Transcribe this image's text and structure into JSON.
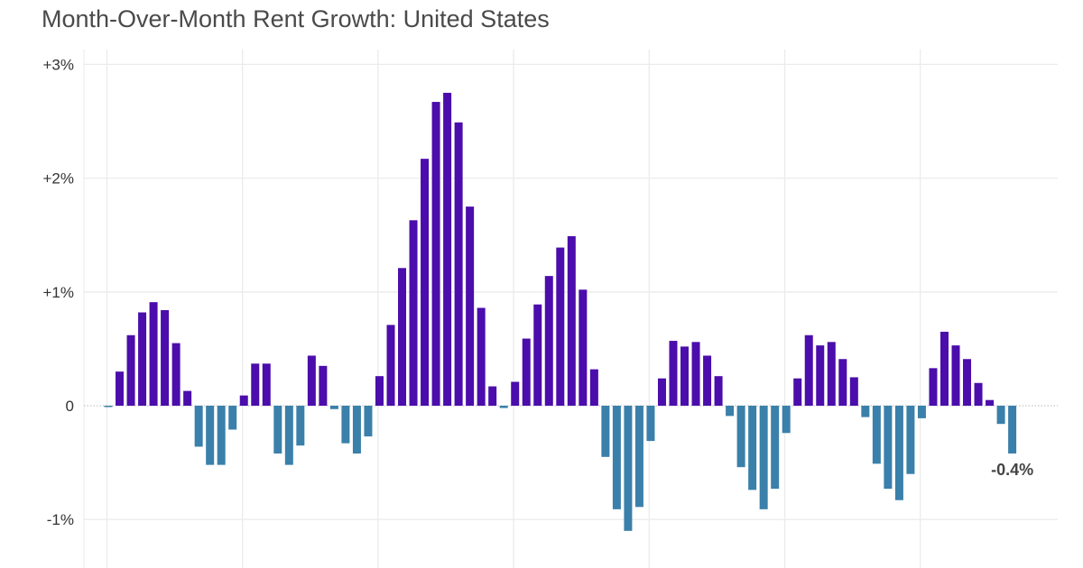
{
  "chart_data": {
    "type": "bar",
    "title": "Month-Over-Month Rent Growth: United States",
    "xlabel": "",
    "ylabel": "",
    "ylim": [
      -1.4,
      3.15
    ],
    "yticks": [
      -1,
      0,
      1,
      2,
      3
    ],
    "ytick_labels": [
      "-1%",
      "0",
      "+1%",
      "+2%",
      "+3%"
    ],
    "grid": true,
    "colors": {
      "positive": "#4b0dab",
      "negative": "#3a80aa",
      "grid": "#ebebeb"
    },
    "values": [
      -0.01,
      0.3,
      0.62,
      0.82,
      0.91,
      0.84,
      0.55,
      0.13,
      -0.36,
      -0.52,
      -0.52,
      -0.21,
      0.09,
      0.37,
      0.37,
      -0.42,
      -0.52,
      -0.35,
      0.44,
      0.35,
      -0.03,
      -0.33,
      -0.42,
      -0.27,
      0.26,
      0.71,
      1.21,
      1.63,
      2.17,
      2.67,
      2.75,
      2.49,
      1.75,
      0.86,
      0.17,
      -0.02,
      0.21,
      0.59,
      0.89,
      1.14,
      1.39,
      1.49,
      1.02,
      0.32,
      -0.45,
      -0.91,
      -1.1,
      -0.89,
      -0.31,
      0.24,
      0.57,
      0.52,
      0.56,
      0.44,
      0.26,
      -0.09,
      -0.54,
      -0.74,
      -0.91,
      -0.73,
      -0.24,
      0.24,
      0.62,
      0.53,
      0.56,
      0.41,
      0.25,
      -0.1,
      -0.51,
      -0.73,
      -0.83,
      -0.6,
      -0.11,
      0.33,
      0.65,
      0.53,
      0.41,
      0.2,
      0.05,
      -0.16,
      -0.42
    ],
    "annotation": {
      "text": "-0.4%",
      "index": 80
    }
  }
}
